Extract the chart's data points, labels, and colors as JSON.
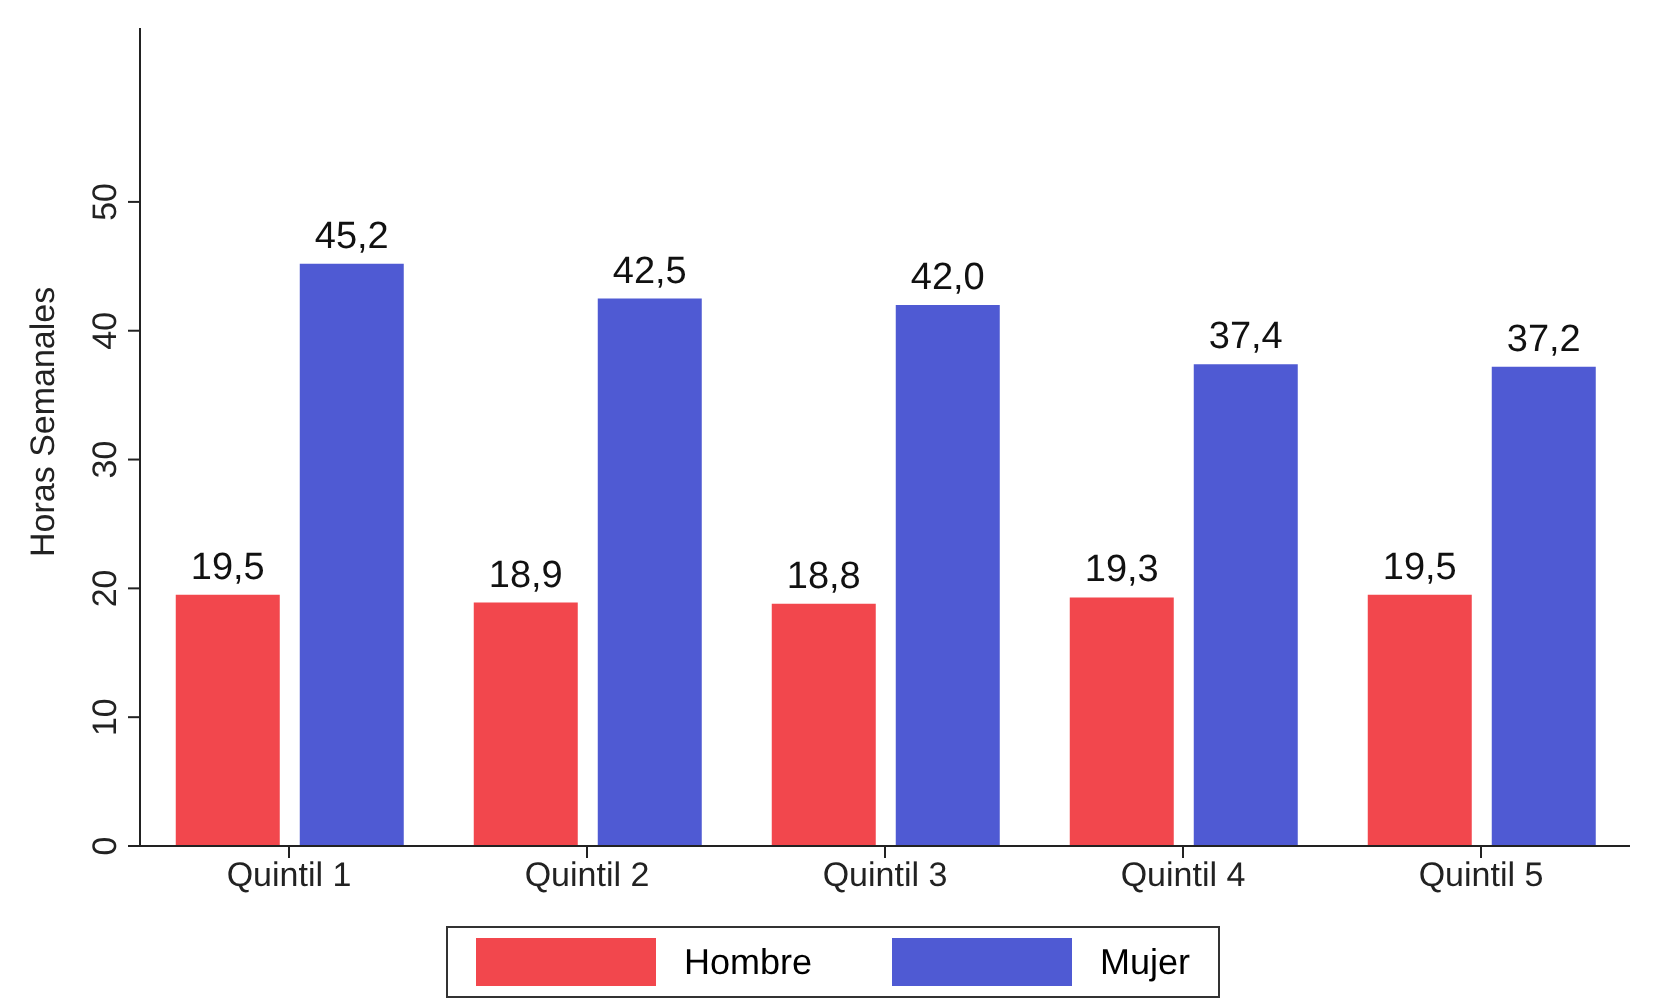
{
  "chart_data": {
    "type": "bar",
    "ylabel": "Horas Semanales",
    "categories": [
      "Quintil 1",
      "Quintil 2",
      "Quintil 3",
      "Quintil 4",
      "Quintil 5"
    ],
    "series": [
      {
        "name": "Hombre",
        "color": "#f2474d",
        "values": [
          19.5,
          18.9,
          18.8,
          19.3,
          19.5
        ],
        "value_labels": [
          "19,5",
          "18,9",
          "18,8",
          "19,3",
          "19,5"
        ]
      },
      {
        "name": "Mujer",
        "color": "#4f5ad3",
        "values": [
          45.2,
          42.5,
          42.0,
          37.4,
          37.2
        ],
        "value_labels": [
          "45,2",
          "42,5",
          "42,0",
          "37,4",
          "37,2"
        ]
      }
    ],
    "ylim": [
      0,
      63.5
    ],
    "yticks": [
      0,
      10,
      20,
      30,
      40,
      50
    ],
    "grid": false,
    "legend": "bottom"
  }
}
